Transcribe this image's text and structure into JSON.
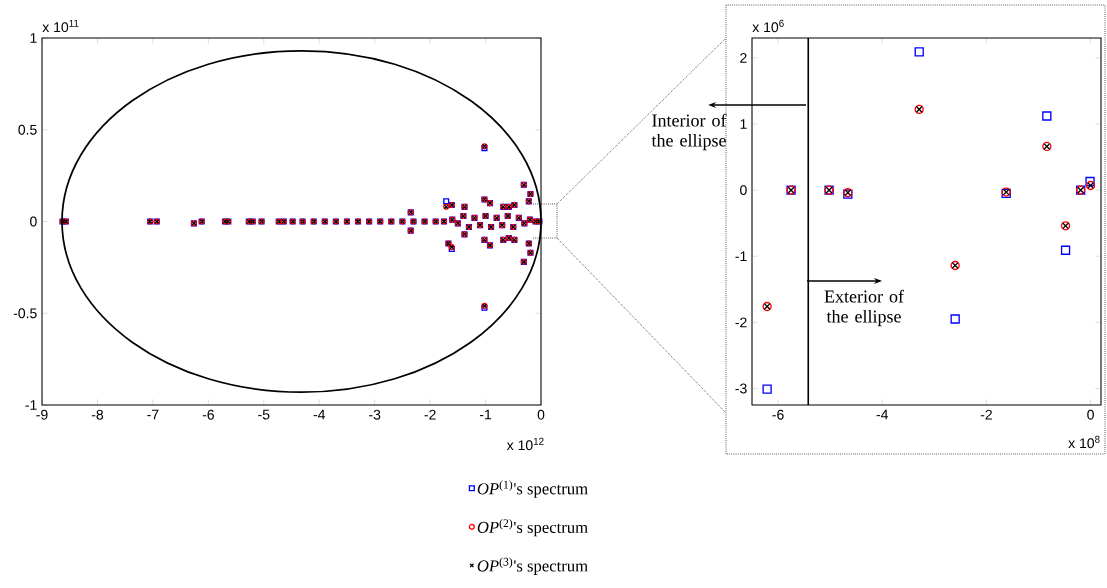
{
  "chart_data": [
    {
      "type": "scatter",
      "xlim": [
        -9,
        0
      ],
      "ylim": [
        -1,
        1
      ],
      "xticks": [
        -9,
        -8,
        -7,
        -6,
        -5,
        -4,
        -3,
        -2,
        -1,
        0
      ],
      "yticks": [
        -1,
        -0.5,
        0,
        0.5,
        1
      ],
      "legend": "bottom",
      "annotations": [
        "x 10$^{11}$",
        "x 10$^{12}$"
      ],
      "series": [
        {
          "name": "*OP*$^{(1)}$'s  spectrum",
          "color": "#0000ff",
          "marker": "square",
          "x": [
            -8.63,
            -8.57,
            -7.05,
            -6.93,
            -6.26,
            -6.12,
            -5.7,
            -5.64,
            -5.27,
            -5.2,
            -5.04,
            -4.73,
            -4.64,
            -4.48,
            -4.3,
            -4.1,
            -3.9,
            -3.7,
            -3.5,
            -3.3,
            -3.1,
            -2.9,
            -2.7,
            -2.5,
            -2.3,
            -2.1,
            -1.9,
            -1.75,
            -1.6,
            -1.5,
            -1.4,
            -1.3,
            -1.2,
            -1.1,
            -1.0,
            -0.9,
            -0.8,
            -0.7,
            -0.6,
            -0.5,
            -0.4,
            -0.3,
            -0.2,
            -0.1,
            -0.03,
            -2.35,
            -2.35,
            -1.71,
            -1.61,
            -1.67,
            -1.61,
            -1.38,
            -1.38,
            -1.02,
            -1.02,
            -1.02,
            -0.92,
            -1.02,
            -0.92,
            -0.68,
            -0.58,
            -0.48,
            -0.68,
            -0.58,
            -0.48,
            -0.31,
            -0.19,
            -0.22,
            -0.22,
            -0.19,
            -0.31
          ],
          "values": [
            0,
            0,
            0,
            0,
            -0.01,
            0,
            0,
            0,
            0,
            0,
            0,
            0,
            0,
            0,
            0,
            0,
            0,
            0,
            0,
            0,
            0,
            0,
            0,
            0,
            0,
            0,
            0,
            0,
            0.01,
            -0.01,
            0.03,
            -0.03,
            0.02,
            -0.02,
            0.03,
            -0.03,
            0.02,
            -0.02,
            0.03,
            -0.03,
            0.02,
            -0.01,
            0.01,
            0,
            0,
            0.05,
            -0.05,
            0.11,
            0.09,
            -0.12,
            -0.15,
            0.08,
            -0.07,
            0.4,
            -0.47,
            0.12,
            0.1,
            -0.1,
            -0.13,
            0.08,
            0.08,
            0.09,
            -0.1,
            -0.09,
            -0.1,
            0.2,
            0.15,
            0.11,
            -0.12,
            -0.17,
            -0.22
          ]
        },
        {
          "name": "*OP*$^{(2)}$'s  spectrum",
          "color": "#ff0000",
          "marker": "circle",
          "x": [
            -8.63,
            -8.57,
            -7.05,
            -6.93,
            -6.26,
            -6.12,
            -5.7,
            -5.64,
            -5.27,
            -5.2,
            -5.04,
            -4.73,
            -4.64,
            -4.48,
            -4.3,
            -4.1,
            -3.9,
            -3.7,
            -3.5,
            -3.3,
            -3.1,
            -2.9,
            -2.7,
            -2.5,
            -2.3,
            -2.1,
            -1.9,
            -1.75,
            -1.6,
            -1.5,
            -1.4,
            -1.3,
            -1.2,
            -1.1,
            -1.0,
            -0.9,
            -0.8,
            -0.7,
            -0.6,
            -0.5,
            -0.4,
            -0.3,
            -0.2,
            -0.1,
            -0.03,
            -2.35,
            -2.35,
            -1.71,
            -1.61,
            -1.67,
            -1.61,
            -1.38,
            -1.38,
            -1.02,
            -1.02,
            -1.02,
            -0.92,
            -1.02,
            -0.92,
            -0.68,
            -0.58,
            -0.48,
            -0.68,
            -0.58,
            -0.48,
            -0.31,
            -0.19,
            -0.22,
            -0.22,
            -0.19,
            -0.31
          ],
          "values": [
            0,
            0,
            0,
            0,
            -0.01,
            0,
            0,
            0,
            0,
            0,
            0,
            0,
            0,
            0,
            0,
            0,
            0,
            0,
            0,
            0,
            0,
            0,
            0,
            0,
            0,
            0,
            0,
            0,
            0.01,
            -0.01,
            0.03,
            -0.03,
            0.02,
            -0.02,
            0.03,
            -0.03,
            0.02,
            -0.02,
            0.03,
            -0.03,
            0.02,
            -0.01,
            0.01,
            0,
            0,
            0.05,
            -0.05,
            0.08,
            0.09,
            -0.12,
            -0.14,
            0.08,
            -0.07,
            0.41,
            -0.46,
            0.12,
            0.1,
            -0.1,
            -0.13,
            0.08,
            0.08,
            0.09,
            -0.1,
            -0.09,
            -0.1,
            0.2,
            0.15,
            0.11,
            -0.12,
            -0.17,
            -0.22
          ]
        },
        {
          "name": "*OP*$^{(3)}$'s  spectrum",
          "color": "#000000",
          "marker": "cross",
          "x": [
            -8.63,
            -8.57,
            -7.05,
            -6.93,
            -6.26,
            -6.12,
            -5.7,
            -5.64,
            -5.27,
            -5.2,
            -5.04,
            -4.73,
            -4.64,
            -4.48,
            -4.3,
            -4.1,
            -3.9,
            -3.7,
            -3.5,
            -3.3,
            -3.1,
            -2.9,
            -2.7,
            -2.5,
            -2.3,
            -2.1,
            -1.9,
            -1.75,
            -1.6,
            -1.5,
            -1.4,
            -1.3,
            -1.2,
            -1.1,
            -1.0,
            -0.9,
            -0.8,
            -0.7,
            -0.6,
            -0.5,
            -0.4,
            -0.3,
            -0.2,
            -0.1,
            -0.03,
            -2.35,
            -2.35,
            -1.71,
            -1.61,
            -1.67,
            -1.61,
            -1.38,
            -1.38,
            -1.02,
            -1.02,
            -1.02,
            -0.92,
            -1.02,
            -0.92,
            -0.68,
            -0.58,
            -0.48,
            -0.68,
            -0.58,
            -0.48,
            -0.31,
            -0.19,
            -0.22,
            -0.22,
            -0.19,
            -0.31
          ],
          "values": [
            0,
            0,
            0,
            0,
            -0.01,
            0,
            0,
            0,
            0,
            0,
            0,
            0,
            0,
            0,
            0,
            0,
            0,
            0,
            0,
            0,
            0,
            0,
            0,
            0,
            0,
            0,
            0,
            0,
            0.01,
            -0.01,
            0.03,
            -0.03,
            0.02,
            -0.02,
            0.03,
            -0.03,
            0.02,
            -0.02,
            0.03,
            -0.03,
            0.02,
            -0.01,
            0.01,
            0,
            0,
            0.05,
            -0.05,
            0.08,
            0.09,
            -0.12,
            -0.14,
            0.08,
            -0.07,
            0.41,
            -0.46,
            0.12,
            0.1,
            -0.1,
            -0.13,
            0.08,
            0.08,
            0.09,
            -0.1,
            -0.09,
            -0.1,
            0.2,
            0.15,
            0.11,
            -0.12,
            -0.17,
            -0.22
          ]
        }
      ]
    },
    {
      "type": "scatter",
      "xlim": [
        -6.5,
        0.2
      ],
      "ylim": [
        -3.25,
        2.3
      ],
      "xticks": [
        -6,
        -4,
        -2,
        0
      ],
      "yticks": [
        -3,
        -2,
        -1,
        0,
        1,
        2
      ],
      "annotations": [
        "x 10$^{6}$",
        "x 10$^{8}$",
        "Interior of the ellipse",
        "Exterior of the ellipse"
      ],
      "ref_lines": [
        {
          "axis": "x",
          "value": -5.42,
          "color": "#000000"
        }
      ],
      "series": [
        {
          "color": "#0000ff",
          "marker": "square",
          "x": [
            -6.21,
            -5.75,
            -5.02,
            -4.66,
            -3.29,
            -2.6,
            -1.62,
            -0.84,
            -0.48,
            -0.19,
            -0.01
          ],
          "values": [
            -3.01,
            0,
            0,
            -0.06,
            2.09,
            -1.95,
            -0.05,
            1.12,
            -0.91,
            0,
            0.13
          ]
        },
        {
          "color": "#ff0000",
          "marker": "circle",
          "x": [
            -6.21,
            -5.75,
            -5.02,
            -4.66,
            -3.29,
            -2.6,
            -1.62,
            -0.84,
            -0.48,
            -0.19,
            0
          ],
          "values": [
            -1.76,
            0,
            0,
            -0.04,
            1.22,
            -1.14,
            -0.03,
            0.66,
            -0.54,
            0,
            0.07
          ]
        },
        {
          "color": "#000000",
          "marker": "cross",
          "x": [
            -6.21,
            -5.75,
            -5.02,
            -4.66,
            -3.29,
            -2.6,
            -1.62,
            -0.84,
            -0.48,
            -0.19,
            0
          ],
          "values": [
            -1.76,
            0,
            0,
            -0.04,
            1.22,
            -1.14,
            -0.03,
            0.66,
            -0.54,
            0,
            0.07
          ]
        }
      ]
    }
  ]
}
